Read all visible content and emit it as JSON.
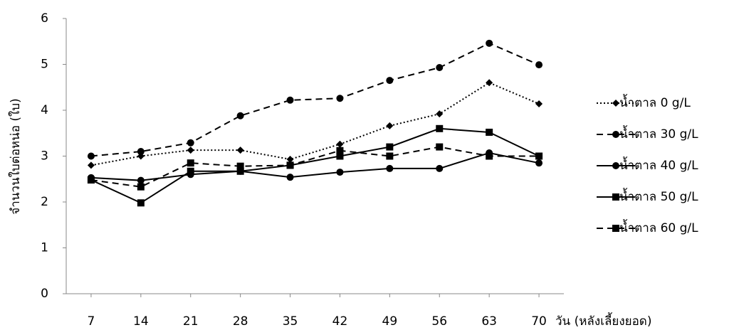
{
  "chart_data": {
    "type": "line",
    "x_label": "วัน (หลังเลี้ยงยอด)",
    "y_label": "จำนวนใบต่อหน่อ (ใบ)",
    "x": [
      7,
      14,
      21,
      28,
      35,
      42,
      49,
      56,
      63,
      70
    ],
    "xlim": [
      3.5,
      73.5
    ],
    "ylim": [
      0,
      6
    ],
    "yticks": [
      0,
      1,
      2,
      3,
      4,
      5,
      6
    ],
    "legend": "right",
    "series": [
      {
        "name": "น้ำตาล 0 g/L",
        "color": "#000000",
        "dash": "dotted",
        "marker": "diamond",
        "values": [
          2.8,
          3.0,
          3.13,
          3.13,
          2.93,
          3.26,
          3.66,
          3.92,
          4.6,
          4.14
        ]
      },
      {
        "name": "น้ำตาล 30 g/L",
        "color": "#000000",
        "dash": "dashed",
        "marker": "circle",
        "values": [
          3.0,
          3.1,
          3.29,
          3.88,
          4.22,
          4.26,
          4.65,
          4.93,
          5.46,
          4.99
        ]
      },
      {
        "name": "น้ำตาล 40 g/L",
        "color": "#000000",
        "dash": "solid",
        "marker": "circle",
        "values": [
          2.53,
          2.47,
          2.6,
          2.67,
          2.54,
          2.65,
          2.73,
          2.73,
          3.07,
          2.85
        ]
      },
      {
        "name": "น้ำตาล 50 g/L",
        "color": "#000000",
        "dash": "solid",
        "marker": "square",
        "values": [
          2.48,
          1.98,
          2.67,
          2.67,
          2.8,
          3.0,
          3.2,
          3.6,
          3.52,
          3.0
        ]
      },
      {
        "name": "น้ำตาล 60 g/L",
        "color": "#000000",
        "dash": "dashed",
        "marker": "square",
        "values": [
          2.48,
          2.33,
          2.85,
          2.78,
          2.8,
          3.12,
          3.0,
          3.2,
          3.0,
          3.0
        ]
      }
    ]
  }
}
